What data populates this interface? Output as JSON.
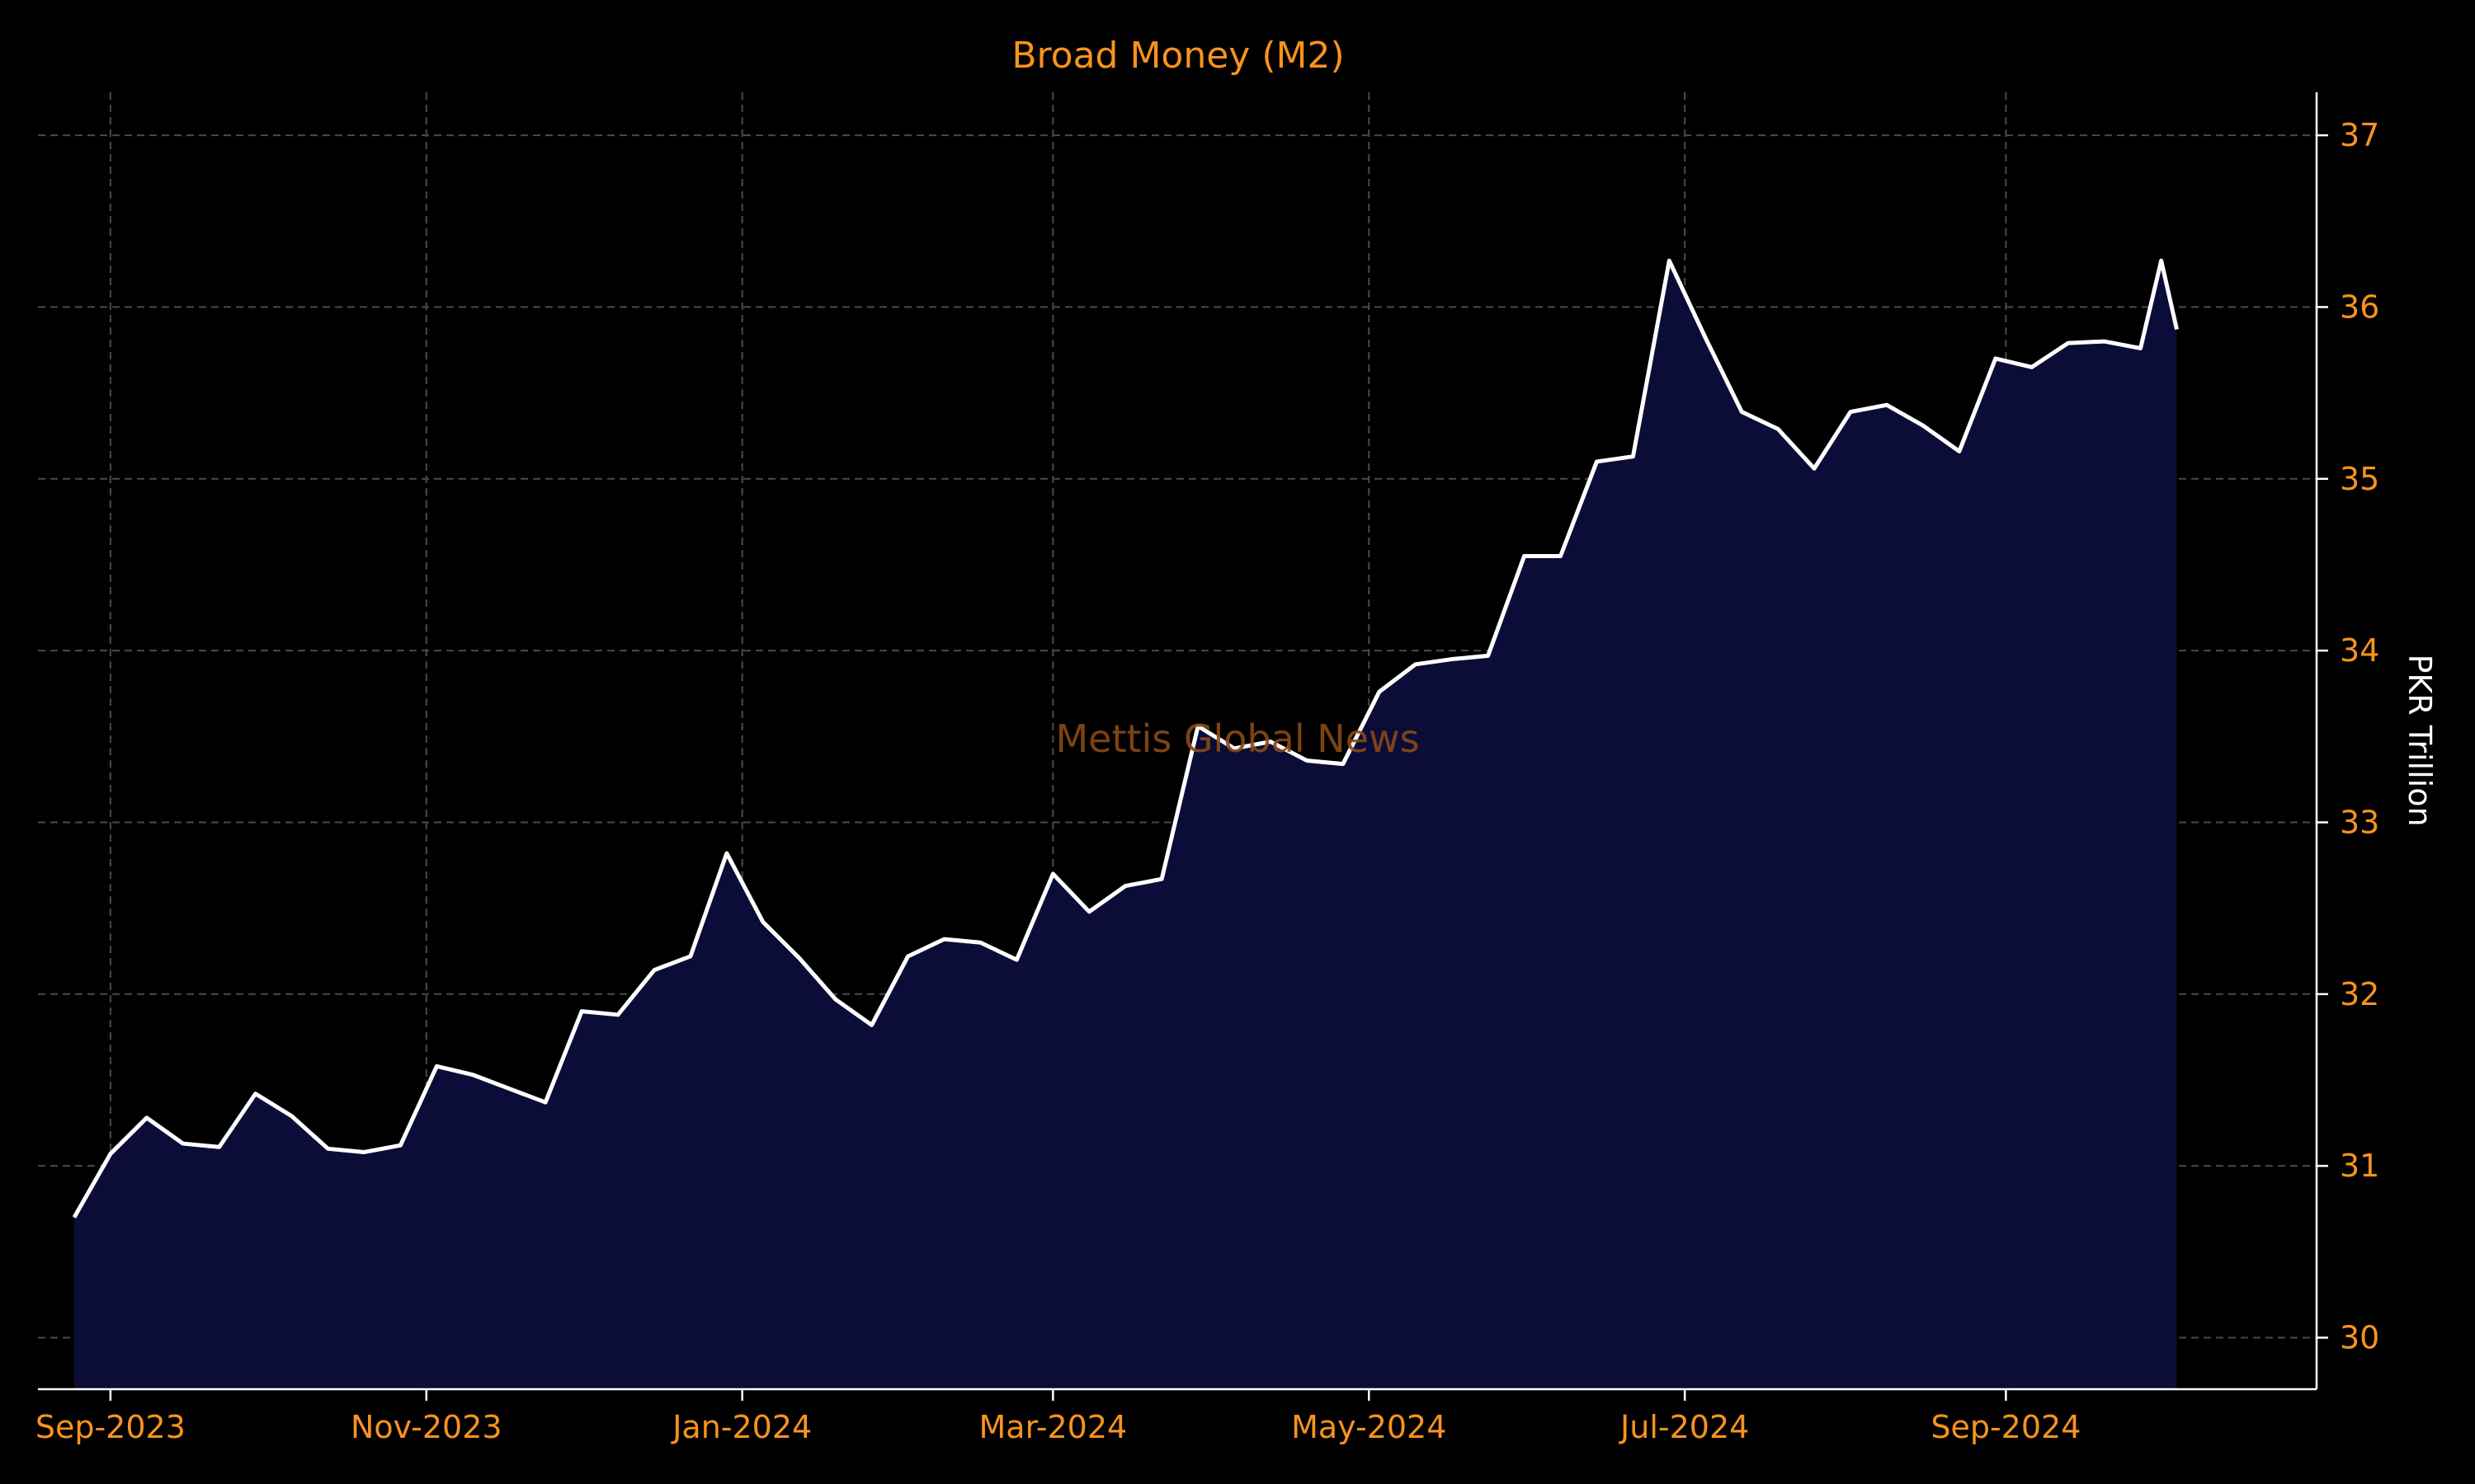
{
  "chart_data": {
    "type": "area",
    "title": "Broad Money (M2)",
    "xlabel": "",
    "ylabel": "PKR Trillion",
    "watermark": "Mettis Global News",
    "colors": {
      "background": "#000000",
      "title": "#f7931e",
      "tick_labels": "#f7931e",
      "ylabel": "#ffffff",
      "line": "#ffffff",
      "fill": "#0b0d38",
      "grid": "#4a4a4a",
      "axis": "#ffffff",
      "watermark": "#8a4a14"
    },
    "grid": true,
    "yaxis_side": "right",
    "ylim": [
      29.7,
      37.25
    ],
    "xlim": [
      "2023-08-18",
      "2024-10-31"
    ],
    "x_ticks": [
      {
        "date": "2023-09-01",
        "label": "Sep-2023"
      },
      {
        "date": "2023-11-01",
        "label": "Nov-2023"
      },
      {
        "date": "2024-01-01",
        "label": "Jan-2024"
      },
      {
        "date": "2024-03-01",
        "label": "Mar-2024"
      },
      {
        "date": "2024-05-01",
        "label": "May-2024"
      },
      {
        "date": "2024-07-01",
        "label": "Jul-2024"
      },
      {
        "date": "2024-09-01",
        "label": "Sep-2024"
      }
    ],
    "y_ticks": [
      30,
      31,
      32,
      33,
      34,
      35,
      36,
      37
    ],
    "series": [
      {
        "x": [
          "2023-08-25",
          "2023-09-01",
          "2023-09-08",
          "2023-09-15",
          "2023-09-22",
          "2023-09-29",
          "2023-10-06",
          "2023-10-13",
          "2023-10-20",
          "2023-10-27",
          "2023-11-03",
          "2023-11-10",
          "2023-11-17",
          "2023-11-24",
          "2023-12-01",
          "2023-12-08",
          "2023-12-15",
          "2023-12-22",
          "2023-12-29",
          "2024-01-05",
          "2024-01-12",
          "2024-01-19",
          "2024-01-26",
          "2024-02-02",
          "2024-02-09",
          "2024-02-16",
          "2024-02-23",
          "2024-03-01",
          "2024-03-08",
          "2024-03-15",
          "2024-03-22",
          "2024-03-29",
          "2024-04-05",
          "2024-04-12",
          "2024-04-19",
          "2024-04-26",
          "2024-05-03",
          "2024-05-10",
          "2024-05-17",
          "2024-05-24",
          "2024-05-31",
          "2024-06-07",
          "2024-06-14",
          "2024-06-21",
          "2024-06-28",
          "2024-07-05",
          "2024-07-12",
          "2024-07-19",
          "2024-07-26",
          "2024-08-02",
          "2024-08-09",
          "2024-08-16",
          "2024-08-23",
          "2024-08-30",
          "2024-09-06",
          "2024-09-13",
          "2024-09-20",
          "2024-09-27",
          "2024-10-01",
          "2024-10-04"
        ],
        "values": [
          30.7,
          31.07,
          31.28,
          31.13,
          31.11,
          31.42,
          31.29,
          31.1,
          31.08,
          31.12,
          31.58,
          31.53,
          31.45,
          31.37,
          31.9,
          31.88,
          32.14,
          32.22,
          32.82,
          32.42,
          32.21,
          31.97,
          31.82,
          32.22,
          32.32,
          32.3,
          32.2,
          32.7,
          32.48,
          32.63,
          32.67,
          33.56,
          33.43,
          33.47,
          33.36,
          33.34,
          33.76,
          33.92,
          33.95,
          33.97,
          34.55,
          34.55,
          35.1,
          35.13,
          36.27,
          35.82,
          35.39,
          35.29,
          35.06,
          35.39,
          35.43,
          35.31,
          35.16,
          35.7,
          35.65,
          35.79,
          35.8,
          35.76,
          36.27,
          35.87
        ]
      }
    ]
  }
}
